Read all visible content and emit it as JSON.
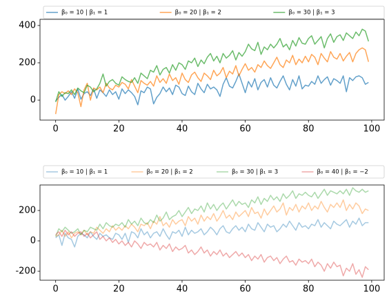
{
  "chart_data": [
    {
      "type": "line",
      "legend": "above",
      "alpha": 0.7,
      "xlim": [
        -4.95,
        103.95
      ],
      "ylim": [
        -107,
        433
      ],
      "xticks": [
        0,
        20,
        40,
        60,
        80,
        100
      ],
      "yticks": [
        0,
        200,
        400
      ],
      "x": [
        0,
        1,
        2,
        3,
        4,
        5,
        6,
        7,
        8,
        9,
        10,
        11,
        12,
        13,
        14,
        15,
        16,
        17,
        18,
        19,
        20,
        21,
        22,
        23,
        24,
        25,
        26,
        27,
        28,
        29,
        30,
        31,
        32,
        33,
        34,
        35,
        36,
        37,
        38,
        39,
        40,
        41,
        42,
        43,
        44,
        45,
        46,
        47,
        48,
        49,
        50,
        51,
        52,
        53,
        54,
        55,
        56,
        57,
        58,
        59,
        60,
        61,
        62,
        63,
        64,
        65,
        66,
        67,
        68,
        69,
        70,
        71,
        72,
        73,
        74,
        75,
        76,
        77,
        78,
        79,
        80,
        81,
        82,
        83,
        84,
        85,
        86,
        87,
        88,
        89,
        90,
        91,
        92,
        93,
        94,
        95,
        96,
        97,
        98,
        99
      ],
      "series": [
        {
          "name": "β₀ = 10 | β₁ = 1",
          "color": "#1f77b4",
          "values": [
            -5,
            15,
            30,
            0,
            20,
            45,
            10,
            60,
            5,
            35,
            45,
            25,
            60,
            10,
            55,
            40,
            20,
            55,
            30,
            45,
            5,
            60,
            35,
            55,
            40,
            20,
            -25,
            50,
            40,
            70,
            60,
            -20,
            15,
            35,
            70,
            45,
            65,
            30,
            80,
            70,
            35,
            25,
            75,
            45,
            30,
            90,
            60,
            40,
            85,
            60,
            70,
            55,
            20,
            85,
            120,
            75,
            65,
            100,
            140,
            90,
            40,
            100,
            70,
            115,
            55,
            95,
            110,
            70,
            120,
            80,
            65,
            100,
            130,
            85,
            55,
            110,
            75,
            130,
            60,
            80,
            75,
            100,
            85,
            130,
            90,
            110,
            125,
            80,
            115,
            105,
            90,
            130,
            45,
            120,
            105,
            125,
            130,
            120,
            85,
            95
          ]
        },
        {
          "name": "β₀ = 20 | β₁ = 2",
          "color": "#ff7f0e",
          "values": [
            -75,
            30,
            45,
            35,
            50,
            30,
            60,
            40,
            -35,
            55,
            90,
            0,
            65,
            55,
            70,
            40,
            90,
            65,
            55,
            80,
            70,
            95,
            85,
            60,
            110,
            75,
            40,
            105,
            90,
            80,
            100,
            75,
            130,
            95,
            115,
            90,
            140,
            105,
            120,
            85,
            145,
            110,
            95,
            135,
            150,
            120,
            100,
            145,
            130,
            110,
            160,
            130,
            145,
            175,
            120,
            155,
            140,
            185,
            130,
            165,
            195,
            160,
            175,
            150,
            190,
            175,
            210,
            185,
            170,
            200,
            230,
            190,
            175,
            215,
            200,
            240,
            190,
            220,
            200,
            235,
            205,
            245,
            230,
            190,
            250,
            225,
            205,
            260,
            230,
            220,
            250,
            210,
            235,
            255,
            205,
            250,
            270,
            280,
            270,
            205
          ]
        },
        {
          "name": "β₀ = 30 | β₁ = 3",
          "color": "#2ca02c",
          "values": [
            -10,
            45,
            20,
            40,
            35,
            55,
            30,
            65,
            50,
            40,
            80,
            70,
            45,
            60,
            90,
            140,
            75,
            100,
            110,
            90,
            80,
            125,
            110,
            100,
            95,
            120,
            90,
            145,
            130,
            115,
            160,
            150,
            185,
            135,
            165,
            175,
            145,
            190,
            160,
            200,
            190,
            165,
            210,
            200,
            225,
            180,
            215,
            195,
            230,
            250,
            210,
            235,
            200,
            250,
            225,
            240,
            265,
            215,
            255,
            235,
            260,
            300,
            275,
            265,
            310,
            245,
            285,
            270,
            300,
            280,
            300,
            330,
            285,
            300,
            270,
            320,
            290,
            335,
            305,
            300,
            330,
            345,
            300,
            320,
            340,
            280,
            330,
            355,
            310,
            340,
            350,
            320,
            360,
            345,
            330,
            365,
            345,
            380,
            370,
            315
          ]
        }
      ]
    },
    {
      "type": "line",
      "legend": "above",
      "alpha": 0.4,
      "xlim": [
        -4.95,
        103.95
      ],
      "ylim": [
        -259,
        368
      ],
      "xticks": [
        0,
        20,
        40,
        60,
        80,
        100
      ],
      "yticks": [
        -200,
        0,
        200
      ],
      "x": [
        0,
        1,
        2,
        3,
        4,
        5,
        6,
        7,
        8,
        9,
        10,
        11,
        12,
        13,
        14,
        15,
        16,
        17,
        18,
        19,
        20,
        21,
        22,
        23,
        24,
        25,
        26,
        27,
        28,
        29,
        30,
        31,
        32,
        33,
        34,
        35,
        36,
        37,
        38,
        39,
        40,
        41,
        42,
        43,
        44,
        45,
        46,
        47,
        48,
        49,
        50,
        51,
        52,
        53,
        54,
        55,
        56,
        57,
        58,
        59,
        60,
        61,
        62,
        63,
        64,
        65,
        66,
        67,
        68,
        69,
        70,
        71,
        72,
        73,
        74,
        75,
        76,
        77,
        78,
        79,
        80,
        81,
        82,
        83,
        84,
        85,
        86,
        87,
        88,
        89,
        90,
        91,
        92,
        93,
        94,
        95,
        96,
        97,
        98,
        99
      ],
      "series": [
        {
          "name": "β₀ = 10 | β₁ = 1",
          "color": "#1f77b4",
          "values": [
            20,
            40,
            -30,
            50,
            20,
            10,
            -40,
            30,
            50,
            40,
            20,
            60,
            30,
            10,
            50,
            30,
            40,
            20,
            10,
            50,
            40,
            10,
            50,
            -10,
            60,
            50,
            20,
            80,
            40,
            60,
            20,
            50,
            60,
            30,
            80,
            40,
            10,
            60,
            50,
            70,
            30,
            90,
            40,
            70,
            50,
            60,
            80,
            40,
            60,
            90,
            70,
            40,
            80,
            100,
            60,
            50,
            80,
            100,
            70,
            90,
            60,
            110,
            80,
            70,
            120,
            90,
            60,
            110,
            90,
            100,
            60,
            80,
            110,
            90,
            130,
            100,
            70,
            120,
            90,
            100,
            80,
            110,
            100,
            140,
            90,
            120,
            100,
            80,
            130,
            110,
            100,
            120,
            140,
            90,
            130,
            110,
            150,
            100,
            120,
            120
          ]
        },
        {
          "name": "β₀ = 20 | β₁ = 2",
          "color": "#ff7f0e",
          "values": [
            30,
            40,
            70,
            30,
            60,
            20,
            50,
            60,
            40,
            70,
            40,
            60,
            50,
            90,
            70,
            50,
            80,
            60,
            100,
            70,
            90,
            70,
            100,
            80,
            110,
            90,
            60,
            110,
            100,
            120,
            80,
            130,
            110,
            160,
            100,
            120,
            90,
            140,
            110,
            130,
            140,
            100,
            160,
            130,
            150,
            110,
            170,
            130,
            160,
            140,
            180,
            130,
            160,
            200,
            150,
            170,
            140,
            190,
            160,
            180,
            200,
            160,
            220,
            180,
            190,
            150,
            210,
            170,
            200,
            230,
            190,
            210,
            250,
            170,
            220,
            200,
            240,
            190,
            230,
            210,
            250,
            200,
            230,
            210,
            260,
            220,
            190,
            240,
            220,
            250,
            220,
            270,
            200,
            240,
            210,
            250,
            230,
            180,
            210,
            200
          ]
        },
        {
          "name": "β₀ = 30 | β₁ = 3",
          "color": "#2ca02c",
          "values": [
            30,
            80,
            60,
            90,
            70,
            50,
            60,
            80,
            40,
            70,
            60,
            90,
            80,
            70,
            110,
            80,
            120,
            100,
            90,
            110,
            100,
            120,
            90,
            140,
            110,
            130,
            100,
            150,
            120,
            110,
            140,
            120,
            170,
            130,
            150,
            190,
            140,
            160,
            170,
            200,
            160,
            190,
            220,
            180,
            210,
            200,
            230,
            190,
            250,
            210,
            240,
            200,
            230,
            250,
            210,
            240,
            270,
            230,
            260,
            240,
            250,
            220,
            270,
            250,
            290,
            240,
            280,
            260,
            300,
            270,
            290,
            260,
            310,
            280,
            300,
            330,
            280,
            310,
            300,
            320,
            300,
            290,
            320,
            280,
            310,
            340,
            300,
            330,
            320,
            310,
            330,
            310,
            340,
            300,
            350,
            330,
            320,
            340,
            320,
            330
          ]
        },
        {
          "name": "β₀ = 40 | β₁ = −2",
          "color": "#d62728",
          "values": [
            40,
            60,
            30,
            70,
            40,
            60,
            30,
            50,
            60,
            30,
            50,
            20,
            40,
            60,
            10,
            30,
            0,
            20,
            -10,
            10,
            -20,
            0,
            -30,
            -10,
            -40,
            0,
            -20,
            -50,
            -10,
            -30,
            -20,
            -40,
            -10,
            -60,
            -30,
            -50,
            -20,
            -70,
            -40,
            -60,
            -50,
            -30,
            -80,
            -60,
            -90,
            -70,
            -40,
            -80,
            -60,
            -100,
            -70,
            -90,
            -60,
            -100,
            -80,
            -110,
            -90,
            -70,
            -100,
            -80,
            -110,
            -90,
            -130,
            -100,
            -120,
            -90,
            -140,
            -110,
            -100,
            -130,
            -110,
            -150,
            -120,
            -100,
            -140,
            -130,
            -160,
            -120,
            -140,
            -130,
            -150,
            -120,
            -170,
            -140,
            -160,
            -200,
            -150,
            -180,
            -140,
            -170,
            -160,
            -230,
            -180,
            -200,
            -150,
            -220,
            -190,
            -240,
            -170,
            -190
          ]
        }
      ]
    }
  ]
}
